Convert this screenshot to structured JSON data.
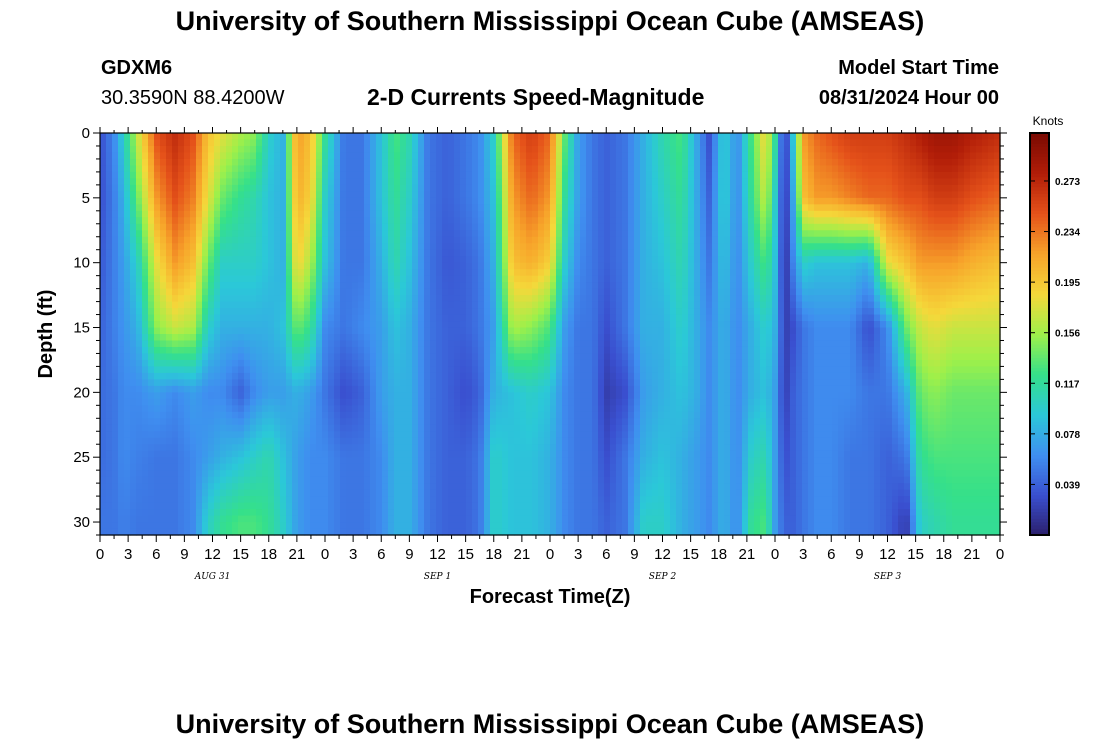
{
  "header": {
    "title_top": "University of Southern Mississippi Ocean Cube (AMSEAS)",
    "station": "GDXM6",
    "coords": "30.3590N  88.4200W",
    "model_start_label": "Model Start Time",
    "model_start_value": "08/31/2024 Hour 00",
    "title_bottom": "University of Southern Mississippi Ocean Cube (AMSEAS)"
  },
  "chart_data": {
    "type": "heatmap",
    "title": "2-D Currents Speed-Magnitude",
    "xlabel": "Forecast Time(Z)",
    "ylabel": "Depth (ft)",
    "x_unit": "hours since 08/31/2024 00Z",
    "xlim": [
      0,
      96
    ],
    "ylim": [
      0,
      31
    ],
    "y_inverted": true,
    "x_tick_labels": [
      "0",
      "3",
      "6",
      "9",
      "12",
      "15",
      "18",
      "21",
      "0",
      "3",
      "6",
      "9",
      "12",
      "15",
      "18",
      "21",
      "0",
      "3",
      "6",
      "9",
      "12",
      "15",
      "18",
      "21",
      "0",
      "3",
      "6",
      "9",
      "12",
      "15",
      "18",
      "21",
      "0"
    ],
    "y_tick_labels": [
      "0",
      "5",
      "10",
      "15",
      "20",
      "25",
      "30"
    ],
    "day_labels": [
      "AUG 31",
      "SEP 1",
      "SEP 2",
      "SEP 3"
    ],
    "colorbar": {
      "label": "Knots",
      "ticks": [
        "0.273",
        "0.234",
        "0.195",
        "0.156",
        "0.117",
        "0.078",
        "0.039"
      ],
      "tick_values": [
        0.273,
        0.234,
        0.195,
        0.156,
        0.117,
        0.078,
        0.039
      ],
      "range": [
        0,
        0.31
      ],
      "colors": [
        "#2b1f6b",
        "#3a4fcf",
        "#3f8ff0",
        "#2bc8d8",
        "#35e08a",
        "#9ef04a",
        "#f5d83a",
        "#f7a32a",
        "#e5521a",
        "#b11d08",
        "#7a0a02"
      ]
    },
    "depths": [
      0,
      5,
      10,
      15,
      20,
      25,
      30
    ],
    "times": [
      0,
      1.5,
      2.5,
      4,
      6,
      8,
      10,
      11.5,
      13,
      15,
      16.5,
      18,
      19.5,
      21,
      22.5,
      24,
      26,
      28,
      30,
      31.5,
      33,
      35,
      37,
      39,
      40.5,
      42,
      44,
      46,
      48,
      49.5,
      51,
      52.5,
      54,
      56,
      58,
      60,
      62,
      63.5,
      65,
      66.5,
      68,
      69.5,
      71,
      72,
      73,
      74,
      75,
      76.5,
      78,
      80,
      82,
      84,
      86,
      87.5,
      89,
      91,
      93,
      96
    ],
    "speed_profiles": [
      [
        0.03,
        0.03,
        0.035,
        0.04,
        0.045,
        0.045,
        0.05
      ],
      [
        0.06,
        0.055,
        0.055,
        0.055,
        0.05,
        0.05,
        0.05
      ],
      [
        0.1,
        0.08,
        0.07,
        0.065,
        0.06,
        0.06,
        0.055
      ],
      [
        0.17,
        0.14,
        0.1,
        0.08,
        0.06,
        0.055,
        0.05
      ],
      [
        0.25,
        0.22,
        0.18,
        0.15,
        0.07,
        0.05,
        0.05
      ],
      [
        0.27,
        0.25,
        0.22,
        0.17,
        0.06,
        0.05,
        0.05
      ],
      [
        0.25,
        0.23,
        0.2,
        0.16,
        0.07,
        0.06,
        0.06
      ],
      [
        0.2,
        0.18,
        0.14,
        0.1,
        0.06,
        0.07,
        0.1
      ],
      [
        0.18,
        0.14,
        0.1,
        0.08,
        0.06,
        0.08,
        0.12
      ],
      [
        0.16,
        0.12,
        0.1,
        0.08,
        0.04,
        0.09,
        0.13
      ],
      [
        0.15,
        0.11,
        0.1,
        0.08,
        0.06,
        0.1,
        0.13
      ],
      [
        0.1,
        0.09,
        0.09,
        0.08,
        0.07,
        0.11,
        0.12
      ],
      [
        0.08,
        0.08,
        0.08,
        0.09,
        0.07,
        0.09,
        0.1
      ],
      [
        0.22,
        0.21,
        0.19,
        0.14,
        0.08,
        0.07,
        0.07
      ],
      [
        0.2,
        0.19,
        0.16,
        0.12,
        0.07,
        0.06,
        0.06
      ],
      [
        0.12,
        0.1,
        0.09,
        0.06,
        0.05,
        0.06,
        0.06
      ],
      [
        0.05,
        0.05,
        0.05,
        0.05,
        0.03,
        0.05,
        0.05
      ],
      [
        0.05,
        0.05,
        0.05,
        0.06,
        0.04,
        0.05,
        0.05
      ],
      [
        0.09,
        0.09,
        0.08,
        0.07,
        0.07,
        0.06,
        0.06
      ],
      [
        0.13,
        0.12,
        0.11,
        0.09,
        0.08,
        0.08,
        0.08
      ],
      [
        0.11,
        0.1,
        0.09,
        0.08,
        0.08,
        0.08,
        0.08
      ],
      [
        0.05,
        0.05,
        0.05,
        0.05,
        0.05,
        0.05,
        0.05
      ],
      [
        0.04,
        0.04,
        0.035,
        0.04,
        0.04,
        0.04,
        0.04
      ],
      [
        0.05,
        0.05,
        0.04,
        0.04,
        0.03,
        0.04,
        0.04
      ],
      [
        0.06,
        0.06,
        0.05,
        0.05,
        0.04,
        0.05,
        0.05
      ],
      [
        0.1,
        0.09,
        0.08,
        0.07,
        0.08,
        0.1,
        0.1
      ],
      [
        0.24,
        0.22,
        0.2,
        0.16,
        0.09,
        0.09,
        0.09
      ],
      [
        0.26,
        0.24,
        0.21,
        0.15,
        0.1,
        0.09,
        0.09
      ],
      [
        0.24,
        0.22,
        0.19,
        0.13,
        0.09,
        0.08,
        0.08
      ],
      [
        0.14,
        0.12,
        0.1,
        0.07,
        0.06,
        0.06,
        0.06
      ],
      [
        0.07,
        0.07,
        0.06,
        0.05,
        0.05,
        0.05,
        0.05
      ],
      [
        0.05,
        0.05,
        0.05,
        0.05,
        0.05,
        0.05,
        0.05
      ],
      [
        0.04,
        0.04,
        0.04,
        0.03,
        0.02,
        0.03,
        0.04
      ],
      [
        0.05,
        0.05,
        0.05,
        0.05,
        0.03,
        0.05,
        0.05
      ],
      [
        0.08,
        0.08,
        0.08,
        0.08,
        0.07,
        0.08,
        0.1
      ],
      [
        0.11,
        0.1,
        0.09,
        0.08,
        0.08,
        0.09,
        0.1
      ],
      [
        0.13,
        0.12,
        0.11,
        0.1,
        0.09,
        0.08,
        0.08
      ],
      [
        0.08,
        0.08,
        0.08,
        0.08,
        0.08,
        0.07,
        0.07
      ],
      [
        0.03,
        0.04,
        0.05,
        0.06,
        0.06,
        0.06,
        0.06
      ],
      [
        0.1,
        0.1,
        0.09,
        0.08,
        0.08,
        0.08,
        0.08
      ],
      [
        0.06,
        0.06,
        0.06,
        0.06,
        0.06,
        0.06,
        0.06
      ],
      [
        0.13,
        0.12,
        0.1,
        0.08,
        0.08,
        0.1,
        0.12
      ],
      [
        0.19,
        0.17,
        0.13,
        0.1,
        0.09,
        0.11,
        0.13
      ],
      [
        0.12,
        0.1,
        0.09,
        0.08,
        0.07,
        0.07,
        0.07
      ],
      [
        0.01,
        0.01,
        0.01,
        0.02,
        0.02,
        0.03,
        0.04
      ],
      [
        0.1,
        0.08,
        0.06,
        0.03,
        0.04,
        0.04,
        0.04
      ],
      [
        0.22,
        0.2,
        0.1,
        0.05,
        0.05,
        0.05,
        0.05
      ],
      [
        0.24,
        0.22,
        0.09,
        0.06,
        0.06,
        0.06,
        0.06
      ],
      [
        0.25,
        0.22,
        0.09,
        0.06,
        0.06,
        0.06,
        0.06
      ],
      [
        0.26,
        0.23,
        0.09,
        0.06,
        0.06,
        0.05,
        0.05
      ],
      [
        0.26,
        0.24,
        0.08,
        0.03,
        0.05,
        0.05,
        0.05
      ],
      [
        0.26,
        0.24,
        0.18,
        0.06,
        0.05,
        0.04,
        0.04
      ],
      [
        0.27,
        0.25,
        0.2,
        0.14,
        0.08,
        0.05,
        0.02
      ],
      [
        0.28,
        0.25,
        0.22,
        0.17,
        0.14,
        0.12,
        0.1
      ],
      [
        0.29,
        0.26,
        0.22,
        0.18,
        0.15,
        0.13,
        0.11
      ],
      [
        0.29,
        0.26,
        0.22,
        0.17,
        0.14,
        0.13,
        0.12
      ],
      [
        0.28,
        0.25,
        0.21,
        0.17,
        0.14,
        0.13,
        0.12
      ],
      [
        0.27,
        0.24,
        0.2,
        0.17,
        0.14,
        0.13,
        0.12
      ]
    ]
  }
}
